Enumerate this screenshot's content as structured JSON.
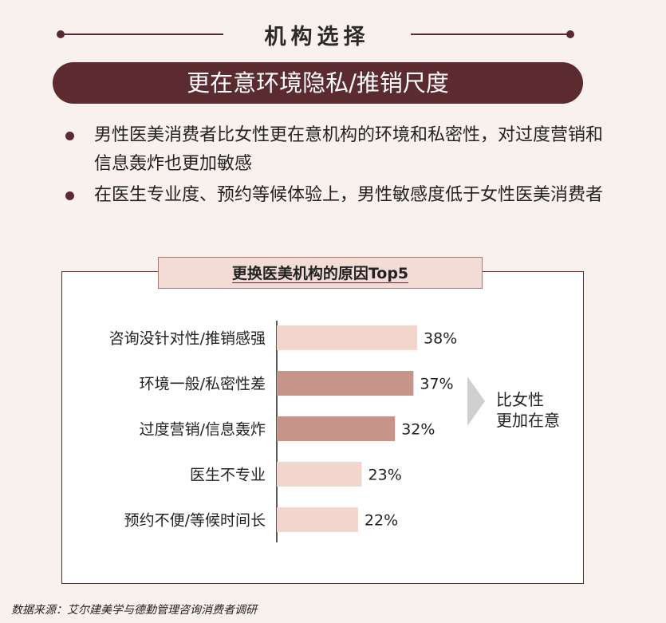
{
  "header": {
    "title": "机构选择"
  },
  "banner": {
    "text": "更在意环境隐私/推销尺度"
  },
  "bullets": [
    "男性医美消费者比女性更在意机构的环境和私密性，对过度营销和信息轰炸也更加敏感",
    "在医生专业度、预约等候体验上，男性敏感度低于女性医美消费者"
  ],
  "chart_data": {
    "type": "bar",
    "orientation": "horizontal",
    "title": "更换医美机构的原因Top5",
    "categories": [
      "咨询没针对性/推销感强",
      "环境一般/私密性差",
      "过度营销/信息轰炸",
      "医生不专业",
      "预约不便/等候时间长"
    ],
    "values": [
      38,
      37,
      32,
      23,
      22
    ],
    "data_labels": [
      "38%",
      "37%",
      "32%",
      "23%",
      "22%"
    ],
    "highlight": [
      false,
      true,
      true,
      false,
      false
    ],
    "unit": "%",
    "colors": {
      "normal": "#f2d5cd",
      "highlight": "#c7948a"
    },
    "callout": {
      "text_line1": "比女性",
      "text_line2": "更加在意"
    }
  },
  "source": {
    "text": "数据来源：艾尔建美学与德勤管理咨询消费者调研"
  }
}
